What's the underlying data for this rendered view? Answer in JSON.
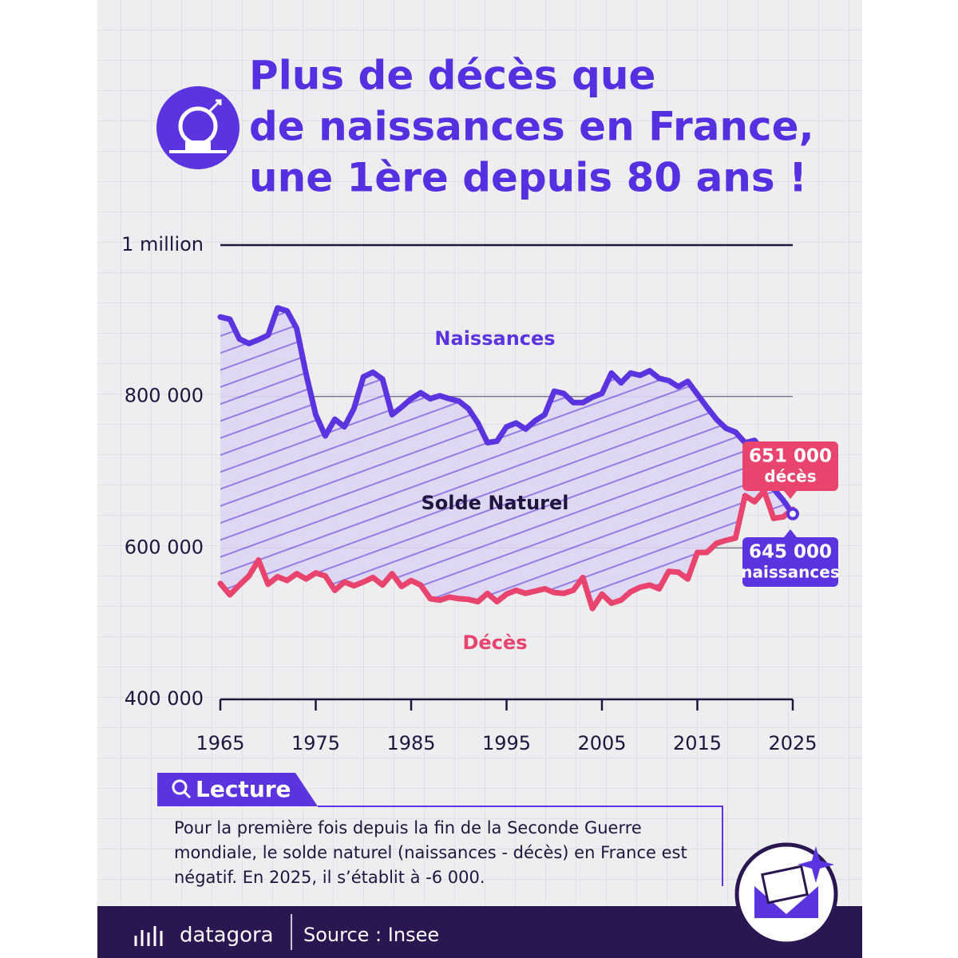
{
  "chart_data": {
    "type": "line",
    "title": [
      "Plus de décès que",
      "de naissances en France,",
      "une 1ère depuis 80 ans !"
    ],
    "x": [
      1965,
      1966,
      1967,
      1968,
      1969,
      1970,
      1971,
      1972,
      1973,
      1974,
      1975,
      1976,
      1977,
      1978,
      1979,
      1980,
      1981,
      1982,
      1983,
      1984,
      1985,
      1986,
      1987,
      1988,
      1989,
      1990,
      1991,
      1992,
      1993,
      1994,
      1995,
      1996,
      1997,
      1998,
      1999,
      2000,
      2001,
      2002,
      2003,
      2004,
      2005,
      2006,
      2007,
      2008,
      2009,
      2010,
      2011,
      2012,
      2013,
      2014,
      2015,
      2016,
      2017,
      2018,
      2019,
      2020,
      2021,
      2022,
      2023,
      2024,
      2025
    ],
    "series": [
      {
        "name": "Naissances",
        "color": "#5b34e0",
        "values": [
          905000,
          902000,
          876000,
          870000,
          875000,
          881000,
          917000,
          913000,
          890000,
          829000,
          776000,
          748000,
          770000,
          760000,
          784000,
          826000,
          832000,
          823000,
          776000,
          786000,
          797000,
          805000,
          797000,
          801000,
          797000,
          794000,
          784000,
          765000,
          739000,
          741000,
          760000,
          765000,
          757000,
          768000,
          776000,
          807000,
          804000,
          792000,
          792000,
          799000,
          804000,
          831000,
          818000,
          831000,
          828000,
          834000,
          824000,
          821000,
          813000,
          820000,
          803000,
          786000,
          770000,
          758000,
          753000,
          739000,
          742000,
          726000,
          678000,
          663000,
          645000
        ]
      },
      {
        "name": "Décès",
        "color": "#e8446e",
        "values": [
          553000,
          538000,
          551000,
          563000,
          584000,
          552000,
          562000,
          557000,
          566000,
          559000,
          567000,
          563000,
          544000,
          555000,
          550000,
          555000,
          561000,
          551000,
          566000,
          549000,
          557000,
          551000,
          533000,
          531000,
          535000,
          533000,
          532000,
          529000,
          540000,
          529000,
          539000,
          544000,
          540000,
          543000,
          546000,
          541000,
          540000,
          544000,
          561000,
          520000,
          539000,
          527000,
          531000,
          542000,
          548000,
          551000,
          546000,
          569000,
          568000,
          559000,
          594000,
          594000,
          606000,
          610000,
          613000,
          669000,
          661000,
          675000,
          639000,
          641000,
          651000
        ]
      }
    ],
    "area_label": "Solde Naturel",
    "callouts": [
      {
        "value": 651000,
        "value_label": "651 000",
        "label": "décès"
      },
      {
        "value": 645000,
        "value_label": "645 000",
        "label": "naissances"
      }
    ],
    "xlim": [
      1965,
      2025
    ],
    "xticks": [
      1965,
      1975,
      1985,
      1995,
      2005,
      2015,
      2025
    ],
    "ylim": [
      400000,
      1000000
    ],
    "yticks": [
      {
        "value": 400000,
        "label": "400 000"
      },
      {
        "value": 600000,
        "label": "600 000"
      },
      {
        "value": 800000,
        "label": "800 000"
      },
      {
        "value": 1000000,
        "label": "1 million"
      }
    ],
    "grid": true
  },
  "lecture": {
    "title": "Lecture",
    "text": "Pour la première fois depuis la fin de la Seconde Guerre mondiale, le solde naturel (naissances - décès) en France est négatif. En 2025, il s’établit à -6 000."
  },
  "footer": {
    "brand": "datagora",
    "source": "Source : Insee"
  }
}
